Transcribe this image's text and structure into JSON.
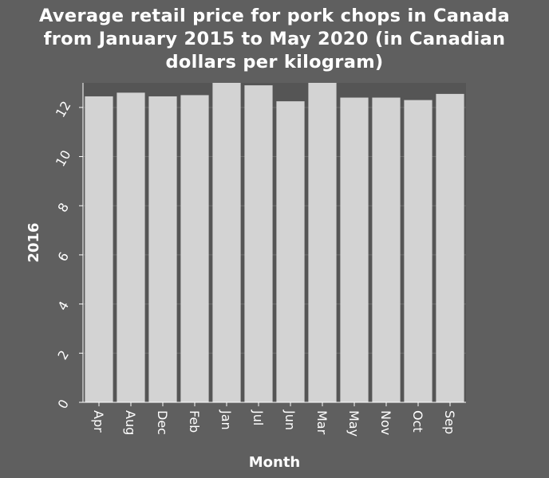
{
  "chart_data": {
    "type": "bar",
    "title_lines": [
      "Average retail price for pork chops in Canada",
      "from January 2015 to May 2020 (in Canadian",
      "dollars per kilogram)"
    ],
    "xlabel": "Month",
    "ylabel": "2016",
    "categories": [
      "Apr",
      "Aug",
      "Dec",
      "Feb",
      "Jan",
      "Jul",
      "Jun",
      "Mar",
      "May",
      "Nov",
      "Oct",
      "Sep"
    ],
    "values": [
      12.45,
      12.6,
      12.45,
      12.5,
      13.0,
      12.9,
      12.25,
      13.0,
      12.4,
      12.4,
      12.3,
      12.55
    ],
    "ylim": [
      0,
      13
    ],
    "yticks": [
      0,
      2,
      4,
      6,
      8,
      10,
      12
    ],
    "grid": true,
    "colors": {
      "background": "#5f5f5f",
      "plot_background": "#555555",
      "bar": "#d3d3d3",
      "grid": "#6e6e6e"
    }
  }
}
